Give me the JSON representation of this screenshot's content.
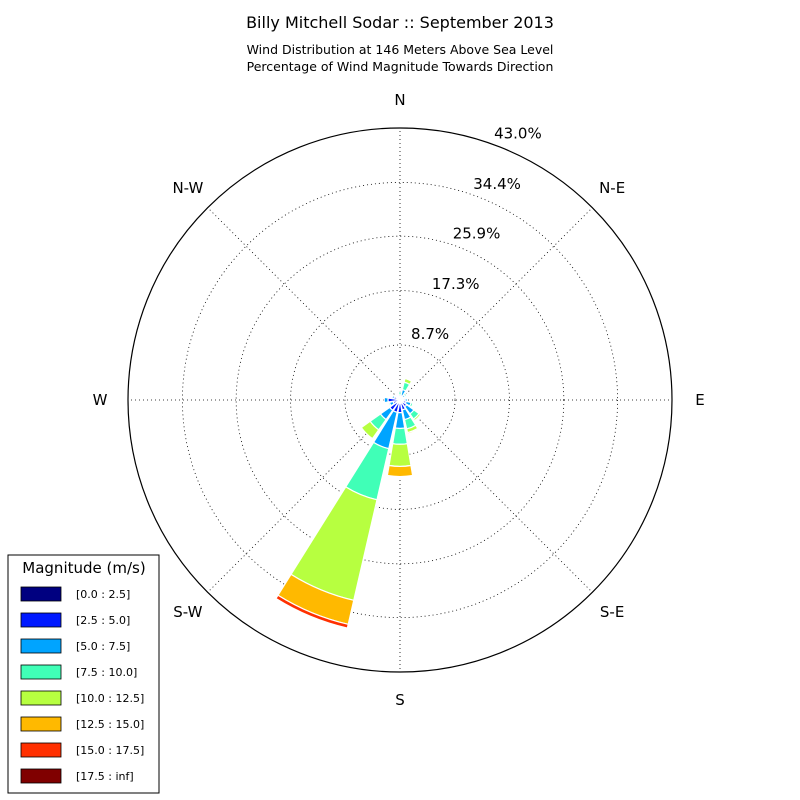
{
  "chart_data": {
    "type": "windrose",
    "title": "Billy Mitchell Sodar :: September 2013",
    "subtitle_lines": [
      "Wind Distribution at 146 Meters Above Sea Level",
      "Percentage of Wind Magnitude Towards Direction"
    ],
    "directions": [
      {
        "label": "N",
        "angle": 0
      },
      {
        "label": "N-E",
        "angle": 45
      },
      {
        "label": "E",
        "angle": 90
      },
      {
        "label": "S-E",
        "angle": 135
      },
      {
        "label": "S",
        "angle": 180
      },
      {
        "label": "S-W",
        "angle": 225
      },
      {
        "label": "W",
        "angle": 270
      },
      {
        "label": "N-W",
        "angle": 315
      }
    ],
    "radial_max": 43.0,
    "radial_ticks": [
      8.7,
      17.3,
      25.9,
      34.4,
      43.0
    ],
    "radial_tick_labels": [
      "8.7%",
      "17.3%",
      "25.9%",
      "34.4%",
      "43.0%"
    ],
    "legend_title": "Magnitude (m/s)",
    "legend_position": "bottom-left",
    "bins": [
      {
        "label": "[0.0 : 2.5]",
        "color": "#000080"
      },
      {
        "label": "[2.5 : 5.0]",
        "color": "#0019ff"
      },
      {
        "label": "[5.0 : 7.5]",
        "color": "#00a4ff"
      },
      {
        "label": "[7.5 : 10.0]",
        "color": "#40ffb7"
      },
      {
        "label": "[10.0 : 12.5]",
        "color": "#b7ff40"
      },
      {
        "label": "[12.5 : 15.0]",
        "color": "#ffb900"
      },
      {
        "label": "[15.0 : 17.5]",
        "color": "#ff3000"
      },
      {
        "label": "[17.5 : inf]",
        "color": "#800000"
      }
    ],
    "sectors": [
      {
        "direction_deg": 0,
        "values": [
          0.1,
          0.3,
          0.4,
          0.5,
          0,
          0,
          0,
          0
        ]
      },
      {
        "direction_deg": 22.5,
        "values": [
          0.2,
          0.5,
          1.0,
          1.2,
          0.6,
          0.1,
          0,
          0
        ]
      },
      {
        "direction_deg": 45,
        "values": [
          0.2,
          0.4,
          0.4,
          0.3,
          0,
          0,
          0,
          0
        ]
      },
      {
        "direction_deg": 67.5,
        "values": [
          0.2,
          0.4,
          0.2,
          0,
          0,
          0,
          0,
          0
        ]
      },
      {
        "direction_deg": 90,
        "values": [
          0.2,
          0.6,
          0.4,
          0,
          0,
          0,
          0,
          0
        ]
      },
      {
        "direction_deg": 112.5,
        "values": [
          0.2,
          0.8,
          0.8,
          0.3,
          0,
          0,
          0,
          0
        ]
      },
      {
        "direction_deg": 135,
        "values": [
          0.3,
          1.0,
          1.4,
          1.0,
          0.3,
          0,
          0,
          0
        ]
      },
      {
        "direction_deg": 157.5,
        "values": [
          0.4,
          1.2,
          1.6,
          1.5,
          0.6,
          0.2,
          0,
          0
        ]
      },
      {
        "direction_deg": 180,
        "values": [
          0.5,
          1.5,
          2.5,
          2.5,
          3.5,
          1.6,
          0,
          0
        ]
      },
      {
        "direction_deg": 202.5,
        "values": [
          0.5,
          1.5,
          5.9,
          8.3,
          16.3,
          3.9,
          0.6,
          0
        ]
      },
      {
        "direction_deg": 225,
        "values": [
          0.5,
          1.5,
          1.8,
          2.0,
          1.7,
          0,
          0,
          0
        ]
      },
      {
        "direction_deg": 247.5,
        "values": [
          0.3,
          0.8,
          0.6,
          0.2,
          0,
          0,
          0,
          0
        ]
      },
      {
        "direction_deg": 270,
        "values": [
          0.3,
          1.6,
          0.6,
          0,
          0,
          0,
          0,
          0
        ]
      },
      {
        "direction_deg": 292.5,
        "values": [
          0.2,
          0.8,
          0.3,
          0,
          0,
          0,
          0,
          0
        ]
      },
      {
        "direction_deg": 315,
        "values": [
          0.2,
          0.4,
          0.2,
          0,
          0,
          0,
          0,
          0
        ]
      },
      {
        "direction_deg": 337.5,
        "values": [
          0.1,
          0.3,
          0.2,
          0,
          0,
          0,
          0,
          0
        ]
      }
    ]
  }
}
